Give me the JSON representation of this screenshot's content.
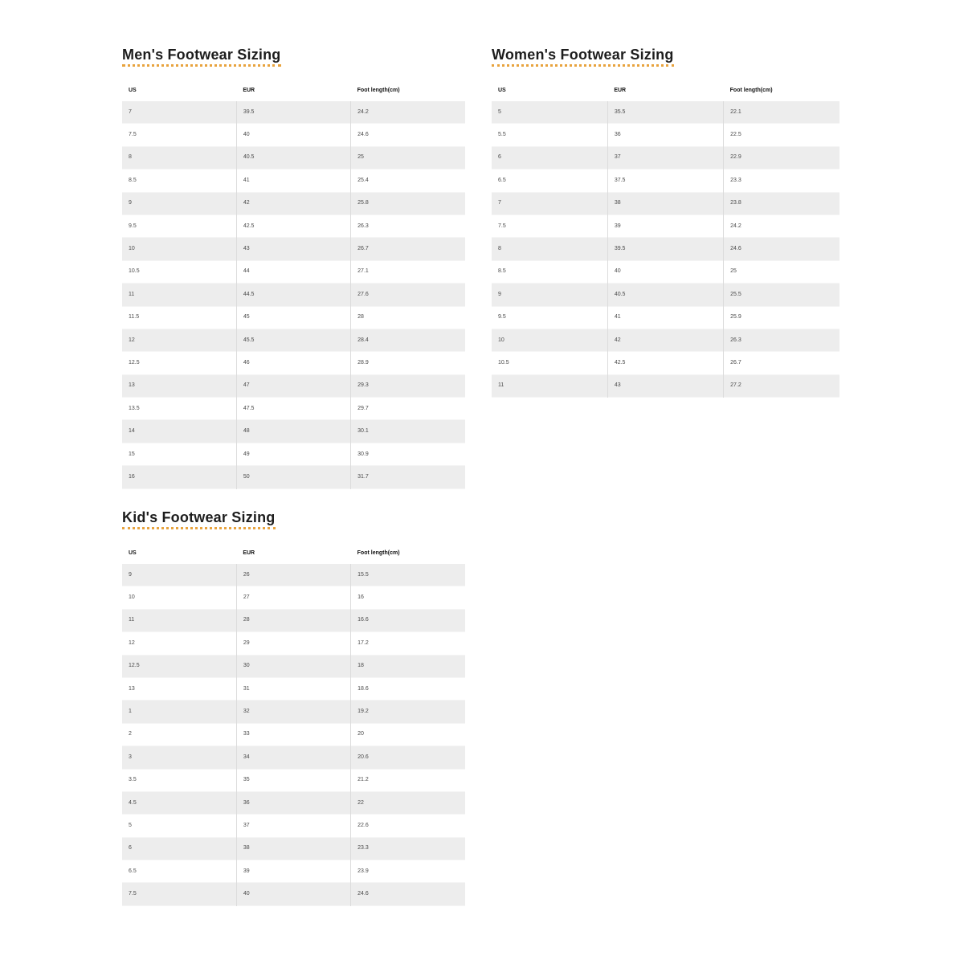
{
  "accent_color": "#e8a33e",
  "row_stripe_color": "#ededed",
  "sections": [
    {
      "id": "mens",
      "title": "Men's Footwear Sizing",
      "headers": [
        "US",
        "EUR",
        "Foot length(cm)"
      ],
      "rows": [
        [
          "7",
          "39.5",
          "24.2"
        ],
        [
          "7.5",
          "40",
          "24.6"
        ],
        [
          "8",
          "40.5",
          "25"
        ],
        [
          "8.5",
          "41",
          "25.4"
        ],
        [
          "9",
          "42",
          "25.8"
        ],
        [
          "9.5",
          "42.5",
          "26.3"
        ],
        [
          "10",
          "43",
          "26.7"
        ],
        [
          "10.5",
          "44",
          "27.1"
        ],
        [
          "11",
          "44.5",
          "27.6"
        ],
        [
          "11.5",
          "45",
          "28"
        ],
        [
          "12",
          "45.5",
          "28.4"
        ],
        [
          "12.5",
          "46",
          "28.9"
        ],
        [
          "13",
          "47",
          "29.3"
        ],
        [
          "13.5",
          "47.5",
          "29.7"
        ],
        [
          "14",
          "48",
          "30.1"
        ],
        [
          "15",
          "49",
          "30.9"
        ],
        [
          "16",
          "50",
          "31.7"
        ]
      ]
    },
    {
      "id": "womens",
      "title": "Women's Footwear Sizing",
      "headers": [
        "US",
        "EUR",
        "Foot length(cm)"
      ],
      "rows": [
        [
          "5",
          "35.5",
          "22.1"
        ],
        [
          "5.5",
          "36",
          "22.5"
        ],
        [
          "6",
          "37",
          "22.9"
        ],
        [
          "6.5",
          "37.5",
          "23.3"
        ],
        [
          "7",
          "38",
          "23.8"
        ],
        [
          "7.5",
          "39",
          "24.2"
        ],
        [
          "8",
          "39.5",
          "24.6"
        ],
        [
          "8.5",
          "40",
          "25"
        ],
        [
          "9",
          "40.5",
          "25.5"
        ],
        [
          "9.5",
          "41",
          "25.9"
        ],
        [
          "10",
          "42",
          "26.3"
        ],
        [
          "10.5",
          "42.5",
          "26.7"
        ],
        [
          "11",
          "43",
          "27.2"
        ]
      ]
    },
    {
      "id": "kids",
      "title": "Kid's Footwear Sizing",
      "headers": [
        "US",
        "EUR",
        "Foot length(cm)"
      ],
      "rows": [
        [
          "9",
          "26",
          "15.5"
        ],
        [
          "10",
          "27",
          "16"
        ],
        [
          "11",
          "28",
          "16.6"
        ],
        [
          "12",
          "29",
          "17.2"
        ],
        [
          "12.5",
          "30",
          "18"
        ],
        [
          "13",
          "31",
          "18.6"
        ],
        [
          "1",
          "32",
          "19.2"
        ],
        [
          "2",
          "33",
          "20"
        ],
        [
          "3",
          "34",
          "20.6"
        ],
        [
          "3.5",
          "35",
          "21.2"
        ],
        [
          "4.5",
          "36",
          "22"
        ],
        [
          "5",
          "37",
          "22.6"
        ],
        [
          "6",
          "38",
          "23.3"
        ],
        [
          "6.5",
          "39",
          "23.9"
        ],
        [
          "7.5",
          "40",
          "24.6"
        ]
      ]
    }
  ]
}
